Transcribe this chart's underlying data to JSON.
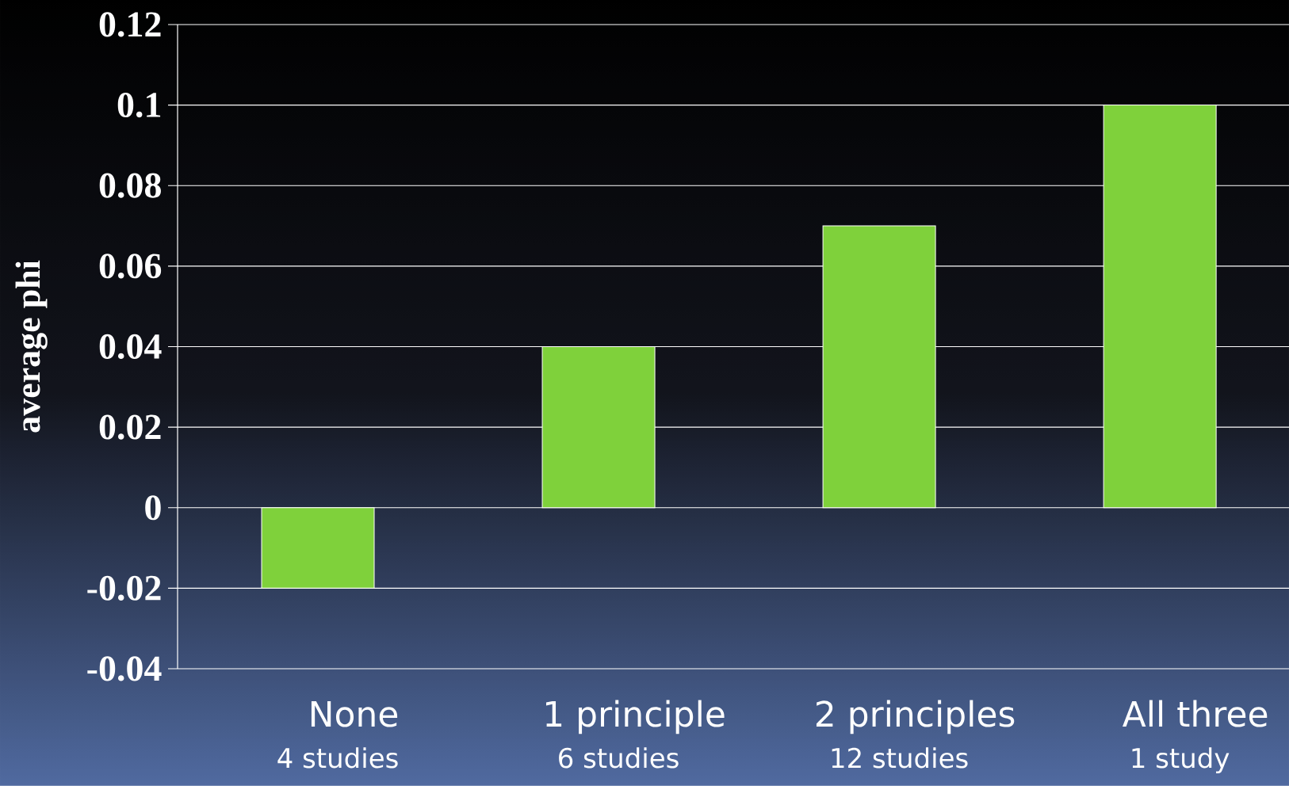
{
  "chart_data": {
    "type": "bar",
    "ylabel": "average phi",
    "categories": [
      "None",
      "1 principle",
      "2 principles",
      "All three"
    ],
    "values": [
      -0.02,
      0.04,
      0.07,
      0.1
    ],
    "color": "#7fd13b",
    "ylim": [
      -0.04,
      0.12
    ],
    "yticks": [
      -0.04,
      -0.02,
      0,
      0.02,
      0.04,
      0.06,
      0.08,
      0.1,
      0.12
    ],
    "grid": "y",
    "annotations": [
      "4 studies",
      "6 studies",
      "12 studies",
      "1 study"
    ]
  }
}
